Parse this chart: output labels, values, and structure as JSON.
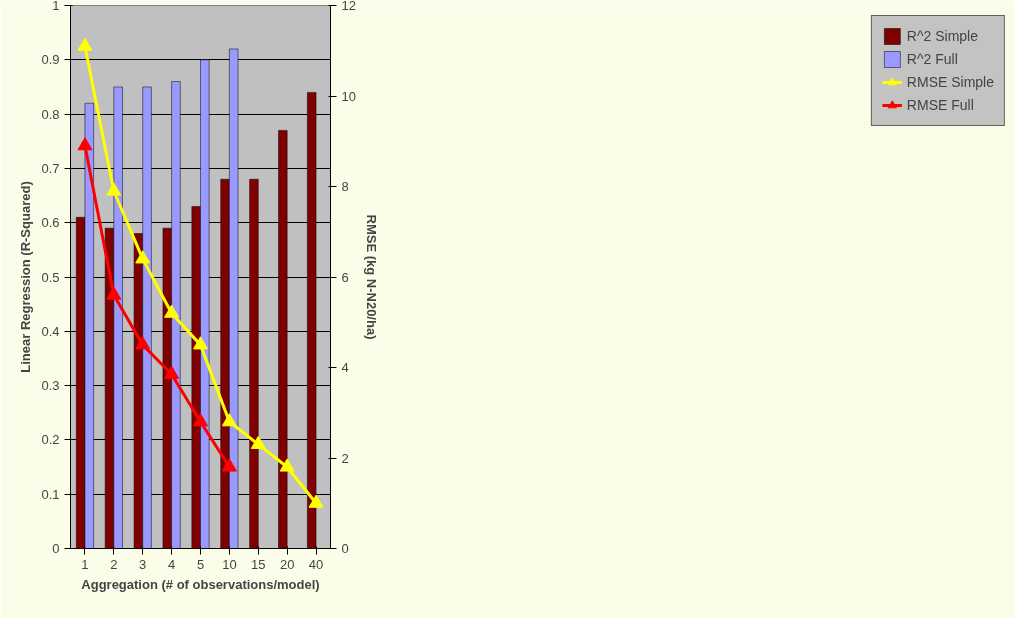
{
  "chart_data": {
    "type": "bar",
    "xlabel": "Aggregation (# of observations/model)",
    "ylabel": "Linear Regression (R-Squared)",
    "y2label": "RMSE (kg N-N20/ha)",
    "categories": [
      "1",
      "2",
      "3",
      "4",
      "5",
      "10",
      "15",
      "20",
      "40"
    ],
    "series": [
      {
        "name": "R^2 Simple",
        "color": "#800000",
        "values": [
          0.61,
          0.59,
          0.58,
          0.59,
          0.63,
          0.68,
          0.68,
          0.77,
          0.84
        ]
      },
      {
        "name": "R^2 Full",
        "color": "#9999ff",
        "values": [
          0.82,
          0.85,
          0.85,
          0.86,
          0.9,
          0.92,
          null,
          null,
          null
        ]
      },
      {
        "name": "RMSE Simple",
        "type": "line",
        "axis": "y2",
        "color": "#ffff00",
        "marker": "triangle",
        "values": [
          11.1,
          7.9,
          6.4,
          5.2,
          4.5,
          2.8,
          2.3,
          1.8,
          1.0
        ]
      },
      {
        "name": "RMSE Full",
        "type": "line",
        "axis": "y2",
        "color": "#ff0000",
        "marker": "triangle",
        "values": [
          8.9,
          5.6,
          4.5,
          3.85,
          2.8,
          1.8,
          null,
          null,
          null
        ]
      }
    ],
    "ylim": [
      0,
      1
    ],
    "yticks": [
      0,
      0.1,
      0.2,
      0.3,
      0.4,
      0.5,
      0.6,
      0.7,
      0.8,
      0.9,
      1
    ],
    "y2lim": [
      0,
      12
    ],
    "y2ticks": [
      0,
      2,
      4,
      6,
      8,
      10,
      12
    ],
    "grid": "y",
    "legend": "right"
  }
}
